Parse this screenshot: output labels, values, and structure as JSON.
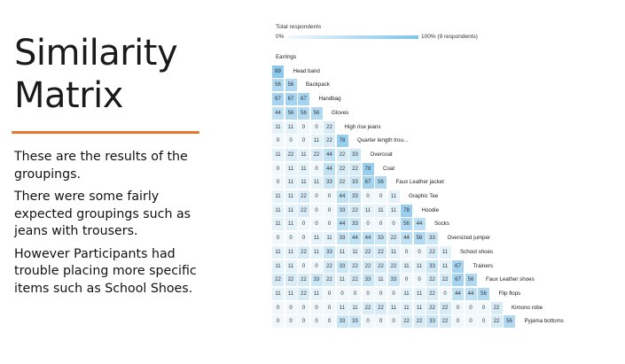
{
  "slide": {
    "title_line1": "Similarity",
    "title_line2": "Matrix",
    "paragraphs": [
      "These are the results of the groupings.",
      "There were some fairly expected groupings such as jeans with trousers.",
      "However Participants had trouble placing more specific items such as School Shoes."
    ]
  },
  "legend": {
    "title": "Total respondents",
    "min_label": "0%",
    "max_label": "100% (9 respondents)",
    "low_color": "#f1f8fc",
    "high_color": "#7fc3ea"
  },
  "chart_data": {
    "type": "heatmap",
    "title": "Similarity Matrix",
    "labels": [
      "Earrings",
      "Head band",
      "Backpack",
      "Handbag",
      "Gloves",
      "High rise jeans",
      "Quarter length trou...",
      "Overcoat",
      "Coat",
      "Faux Leather jacket",
      "Graphic Tee",
      "Hoodie",
      "Socks",
      "Oversized jumper",
      "School shoes",
      "Trainers",
      "Faux Leather shoes",
      "Flip flops",
      "Kimono robe",
      "Pyjama bottoms"
    ],
    "rows": [
      [],
      [
        89
      ],
      [
        56,
        56
      ],
      [
        67,
        67,
        67
      ],
      [
        44,
        56,
        56,
        56
      ],
      [
        11,
        11,
        0,
        0,
        22
      ],
      [
        0,
        0,
        0,
        11,
        22,
        78
      ],
      [
        11,
        22,
        11,
        22,
        44,
        22,
        33
      ],
      [
        0,
        11,
        11,
        0,
        44,
        22,
        22,
        78
      ],
      [
        0,
        11,
        11,
        11,
        33,
        22,
        33,
        67,
        56
      ],
      [
        11,
        11,
        22,
        0,
        0,
        44,
        33,
        0,
        0,
        11
      ],
      [
        11,
        11,
        22,
        0,
        0,
        33,
        22,
        11,
        11,
        11,
        78
      ],
      [
        11,
        11,
        0,
        0,
        0,
        44,
        33,
        0,
        0,
        0,
        56,
        44
      ],
      [
        0,
        0,
        0,
        11,
        11,
        33,
        44,
        44,
        33,
        22,
        44,
        56,
        33
      ],
      [
        11,
        11,
        22,
        11,
        33,
        11,
        11,
        22,
        22,
        11,
        0,
        0,
        22,
        11
      ],
      [
        11,
        11,
        0,
        0,
        22,
        33,
        22,
        22,
        22,
        22,
        11,
        11,
        33,
        11,
        67
      ],
      [
        22,
        22,
        22,
        33,
        22,
        11,
        22,
        33,
        11,
        33,
        0,
        0,
        22,
        22,
        67,
        56
      ],
      [
        11,
        11,
        22,
        11,
        0,
        0,
        0,
        0,
        0,
        0,
        11,
        11,
        22,
        0,
        44,
        44,
        56
      ],
      [
        0,
        0,
        0,
        0,
        0,
        11,
        11,
        22,
        22,
        11,
        11,
        11,
        22,
        22,
        0,
        0,
        0,
        22
      ],
      [
        0,
        0,
        0,
        0,
        0,
        33,
        33,
        0,
        0,
        0,
        22,
        22,
        33,
        22,
        0,
        0,
        0,
        22,
        56
      ]
    ],
    "value_unit": "% of respondents",
    "range": [
      0,
      100
    ]
  }
}
